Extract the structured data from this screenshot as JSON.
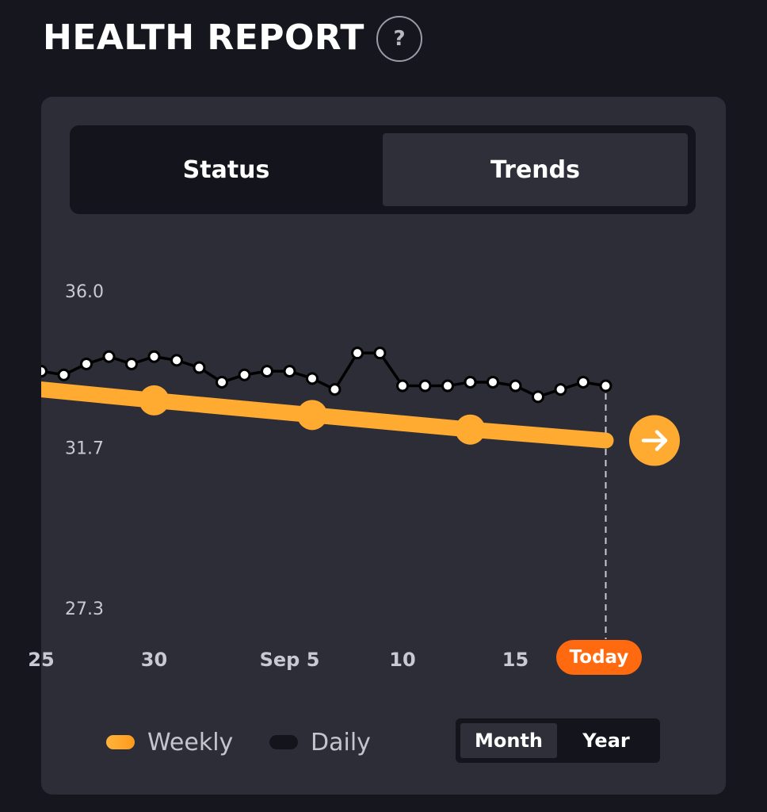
{
  "header": {
    "title": "HEALTH REPORT",
    "help_label": "?"
  },
  "tabs": [
    {
      "label": "Status",
      "selected": false
    },
    {
      "label": "Trends",
      "selected": true
    }
  ],
  "chart_data": {
    "type": "line",
    "ylim": [
      27.3,
      36.0
    ],
    "y_ticks": [
      {
        "value": 36.0,
        "label": "36.0"
      },
      {
        "value": 31.7,
        "label": "31.7"
      },
      {
        "value": 27.3,
        "label": "27.3"
      }
    ],
    "x_ticks": [
      {
        "day": 25,
        "label": "25"
      },
      {
        "day": 30,
        "label": "30"
      },
      {
        "day": 36,
        "label": "Sep 5"
      },
      {
        "day": 41,
        "label": "10"
      },
      {
        "day": 46,
        "label": "15"
      }
    ],
    "today": {
      "day": 50,
      "label": "Today"
    },
    "series": [
      {
        "name": "Daily",
        "color": "#000000",
        "x": [
          25,
          26,
          27,
          28,
          29,
          30,
          31,
          32,
          33,
          34,
          35,
          36,
          37,
          38,
          39,
          40,
          41,
          42,
          43,
          44,
          45,
          46,
          47,
          48,
          49,
          50
        ],
        "y": [
          33.8,
          33.7,
          34.0,
          34.2,
          34.0,
          34.2,
          34.1,
          33.9,
          33.5,
          33.7,
          33.8,
          33.8,
          33.6,
          33.3,
          34.3,
          34.3,
          33.4,
          33.4,
          33.4,
          33.5,
          33.5,
          33.4,
          33.1,
          33.3,
          33.5,
          33.4
        ]
      },
      {
        "name": "Weekly",
        "color": "#ffaa30",
        "x": [
          25,
          30,
          37,
          44,
          50
        ],
        "y": [
          33.3,
          33.0,
          32.6,
          32.2,
          31.9
        ],
        "marker_x": [
          30,
          37,
          44
        ]
      }
    ]
  },
  "legend": {
    "weekly": "Weekly",
    "daily": "Daily"
  },
  "range_toggle": [
    {
      "label": "Month",
      "selected": true
    },
    {
      "label": "Year",
      "selected": false
    }
  ]
}
